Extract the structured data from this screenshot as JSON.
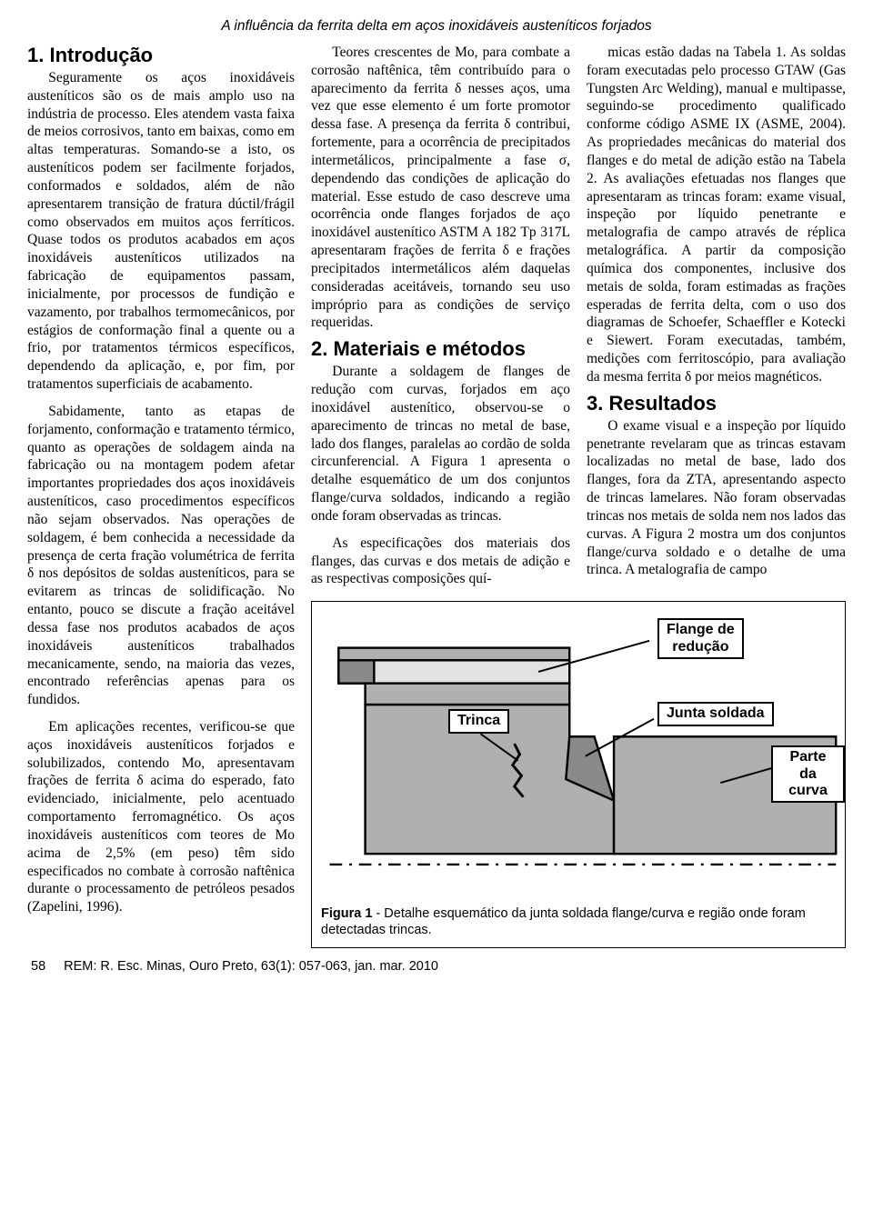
{
  "running_title": "A influência da ferrita delta em aços inoxidáveis austeníticos forjados",
  "sections": {
    "s1_title": "1. Introdução",
    "s2_title": "2. Materiais e métodos",
    "s3_title": "3. Resultados"
  },
  "col1": {
    "p1": "Seguramente os aços inoxidáveis austeníticos são os de mais amplo uso na indústria de processo. Eles atendem vasta faixa de meios corrosivos, tanto em baixas, como em altas temperaturas. Somando-se a isto, os austeníticos podem ser facilmente forjados, conformados e soldados, além de não apresentarem transição de fratura dúctil/frágil como observados em muitos aços ferríticos. Quase todos os produtos acabados em aços inoxidáveis austeníticos utilizados na fabricação de equipamentos passam, inicialmente, por processos de fundição e vazamento, por trabalhos termomecânicos, por estágios de conformação final a quente ou a frio, por tratamentos térmicos específicos, dependendo da aplicação, e, por fim, por tratamentos superficiais de acabamento.",
    "p2": "Sabidamente, tanto as etapas de forjamento, conformação e tratamento térmico, quanto as operações de soldagem ainda na fabricação ou na montagem podem afetar importantes propriedades dos aços inoxidáveis austeníticos, caso procedimentos específicos não sejam observados. Nas operações de soldagem, é bem conhecida a necessidade da presença de certa fração volumétrica de ferrita δ nos depósitos de soldas austeníticos, para se evitarem as trincas de solidificação. No entanto, pouco se discute a fração aceitável dessa fase nos produtos acabados de aços inoxidáveis austeníticos trabalhados mecanicamente, sendo, na maioria das vezes, encontrado referências apenas para os fundidos.",
    "p3": "Em aplicações recentes, verificou-se que aços inoxidáveis austeníticos forjados e solubilizados, contendo Mo, apresentavam frações de ferrita δ acima do esperado, fato evidenciado, inicialmente, pelo acentuado comportamento ferromagnético. Os aços inoxidáveis austeníticos com teores de Mo acima de 2,5% (em peso) têm sido especificados no combate à corrosão naftênica durante o processamento de petróleos pesados (Zapelini, 1996)."
  },
  "col2": {
    "p1": "Teores crescentes de Mo, para combate a corrosão naftênica, têm contribuído para o aparecimento da ferrita δ nesses aços, uma vez que esse elemento é um forte promotor dessa fase. A presença da ferrita δ contribui, fortemente, para a ocorrência de precipitados intermetálicos, principalmente a fase σ, dependendo das condições de aplicação do material. Esse estudo de caso descreve uma ocorrência onde flanges forjados de aço inoxidável austenítico ASTM A 182 Tp 317L apresentaram frações de ferrita δ e frações precipitados intermetálicos além daquelas consideradas aceitáveis, tornando seu uso impróprio para as condições de serviço requeridas.",
    "p2": "Durante a soldagem de flanges de redução com curvas, forjados em aço inoxidável austenítico, observou-se o aparecimento de trincas no metal de base, lado dos flanges, paralelas ao cordão de solda circunferencial. A Figura 1 apresenta o detalhe esquemático de um dos conjuntos flange/curva soldados, indicando a região onde foram observadas as trincas.",
    "p3": "As especificações dos materiais dos flanges, das curvas e dos metais de adição e as respectivas composições quí-"
  },
  "col3": {
    "p1": "micas estão dadas na Tabela 1. As soldas foram executadas pelo processo GTAW (Gas Tungsten Arc Welding), manual e multipasse, seguindo-se procedimento qualificado conforme código ASME IX (ASME, 2004). As propriedades mecânicas do material dos flanges e do metal de adição estão na Tabela 2. As avaliações efetuadas nos flanges que apresentaram as trincas foram: exame visual, inspeção por líquido penetrante e metalografia de campo através de réplica metalográfica. A partir da composição química dos componentes, inclusive dos metais de solda, foram estimadas as frações esperadas de ferrita delta, com o uso dos diagramas de Schoefer, Schaeffler e Kotecki e Siewert. Foram executadas, também, medições com ferritoscópio, para avaliação da mesma ferrita δ por meios magnéticos.",
    "p2": "O exame visual e a inspeção por líquido penetrante revelaram que as trincas estavam localizadas no metal de base, lado dos flanges, fora da ZTA, apresentando aspecto de trincas lamelares. Não foram observadas trincas nos metais de solda nem nos lados das curvas. A Figura 2 mostra um dos conjuntos flange/curva soldado e o detalhe de uma trinca. A metalografia de campo"
  },
  "figure1": {
    "caption_bold": "Figura 1",
    "caption_rest": " - Detalhe esquemático da junta soldada flange/curva e região onde foram detectadas trincas.",
    "labels": {
      "flange": "Flange de\nredução",
      "junta": "Junta soldada",
      "trinca": "Trinca",
      "parte": "Parte da\ncurva"
    },
    "colors": {
      "mid_gray": "#b0b0b0",
      "light_gray": "#e2e2e2",
      "dark_gray": "#8a8a8a",
      "outline": "#000000",
      "background": "#ffffff"
    }
  },
  "footer": {
    "page": "58",
    "citation": "REM: R. Esc. Minas, Ouro Preto, 63(1): 057-063, jan. mar. 2010"
  }
}
